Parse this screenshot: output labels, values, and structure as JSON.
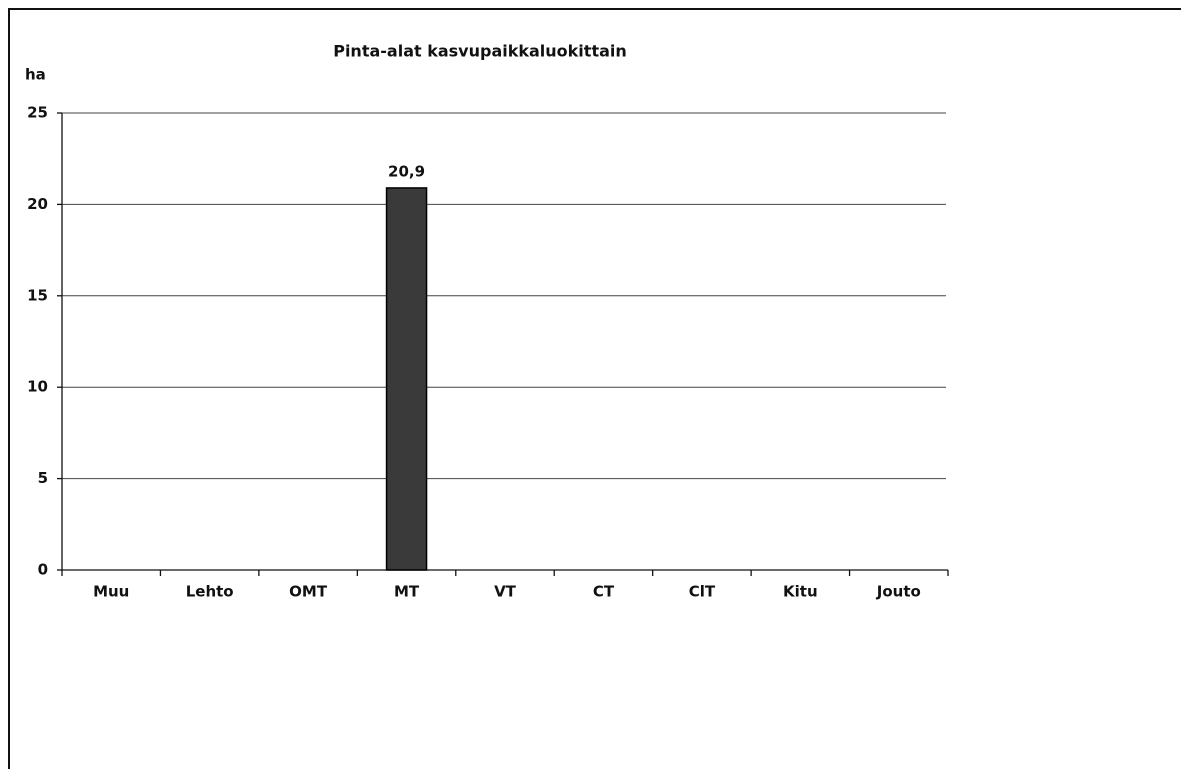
{
  "chart_data": {
    "type": "bar",
    "title": "Pinta-alat kasvupaikkaluokittain",
    "y_label": "ha",
    "categories": [
      "Muu",
      "Lehto",
      "OMT",
      "MT",
      "VT",
      "CT",
      "ClT",
      "Kitu",
      "Jouto"
    ],
    "values": [
      0,
      0,
      0,
      20.9,
      0,
      0,
      0,
      0,
      0
    ],
    "value_labels": [
      null,
      null,
      null,
      "20,9",
      null,
      null,
      null,
      null,
      null
    ],
    "color": "#3a3a3a",
    "ylim": [
      0,
      25
    ],
    "yticks": [
      0,
      5,
      10,
      15,
      20,
      25
    ],
    "grid": true
  }
}
